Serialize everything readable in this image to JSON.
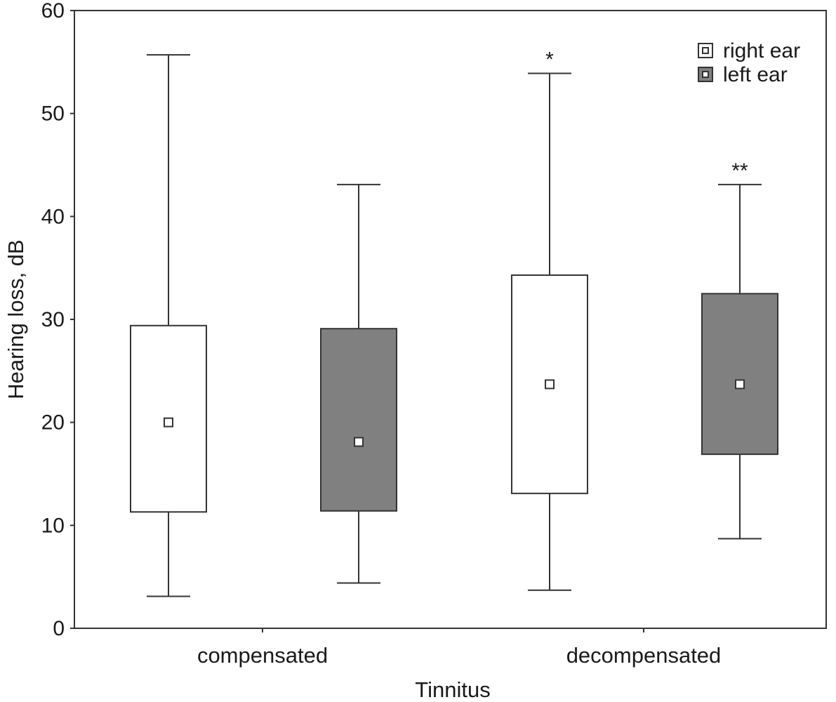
{
  "chart_data": {
    "type": "box",
    "title": "",
    "xlabel": "Tinnitus",
    "ylabel": "Hearing loss, dB",
    "ylim": [
      0,
      60
    ],
    "yticks": [
      0,
      10,
      20,
      30,
      40,
      50,
      60
    ],
    "categories": [
      "compensated",
      "decompensated"
    ],
    "colors": {
      "right": "#ffffff",
      "left": "#808080",
      "stroke": "#333333"
    },
    "series": [
      {
        "name": "right ear",
        "key": "right",
        "boxes": [
          {
            "category": "compensated",
            "min": 3.1,
            "q1": 11.3,
            "center": 20.0,
            "q3": 29.4,
            "max": 55.7,
            "sig": ""
          },
          {
            "category": "decompensated",
            "min": 3.7,
            "q1": 13.1,
            "center": 23.7,
            "q3": 34.3,
            "max": 53.9,
            "sig": "*"
          }
        ]
      },
      {
        "name": "left ear",
        "key": "left",
        "boxes": [
          {
            "category": "compensated",
            "min": 4.4,
            "q1": 11.4,
            "center": 18.1,
            "q3": 29.1,
            "max": 43.1,
            "sig": ""
          },
          {
            "category": "decompensated",
            "min": 8.7,
            "q1": 16.9,
            "center": 23.7,
            "q3": 32.5,
            "max": 43.1,
            "sig": "**"
          }
        ]
      }
    ],
    "legend": {
      "position": "top-right",
      "items": [
        {
          "label": "right ear",
          "key": "right"
        },
        {
          "label": "left ear",
          "key": "left"
        }
      ]
    }
  }
}
